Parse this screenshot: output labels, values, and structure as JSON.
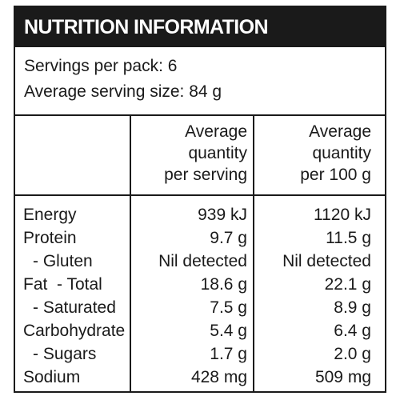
{
  "panel": {
    "title": "NUTRITION INFORMATION",
    "servings_per_pack": "Servings per pack: 6",
    "average_serving_size": "Average serving size: 84 g"
  },
  "columns": {
    "per_serving": [
      "Average",
      "quantity",
      "per serving"
    ],
    "per_100g": [
      "Average",
      "quantity",
      "per 100 g"
    ]
  },
  "nutrients": [
    {
      "name": "Energy",
      "per_serving": "939 kJ",
      "per_100g": "1120 kJ"
    },
    {
      "name": "Protein",
      "per_serving": "9.7 g",
      "per_100g": "11.5 g"
    },
    {
      "name": "- Gluten",
      "per_serving": "Nil detected",
      "per_100g": "Nil detected"
    },
    {
      "name": "Fat  - Total",
      "per_serving": "18.6 g",
      "per_100g": "22.1 g"
    },
    {
      "name": "- Saturated",
      "per_serving": "7.5 g",
      "per_100g": "8.9 g"
    },
    {
      "name": "Carbohydrate",
      "per_serving": "5.4 g",
      "per_100g": "6.4 g"
    },
    {
      "name": "- Sugars",
      "per_serving": "1.7 g",
      "per_100g": "2.0 g"
    },
    {
      "name": "Sodium",
      "per_serving": "428 mg",
      "per_100g": "509 mg"
    }
  ]
}
